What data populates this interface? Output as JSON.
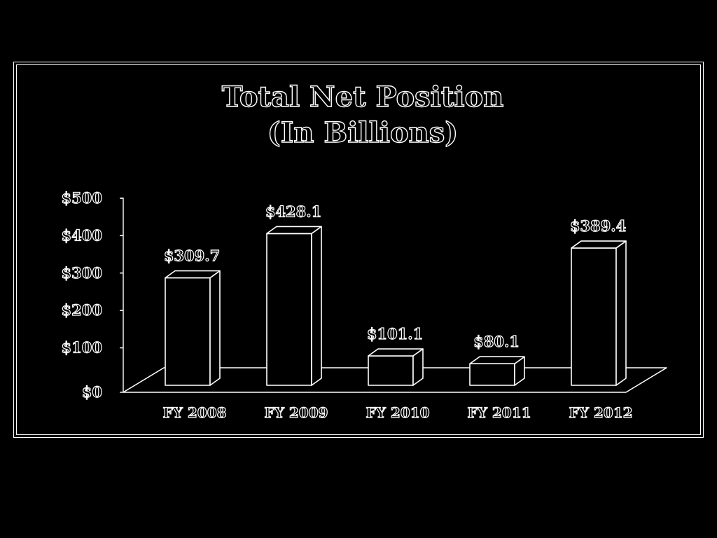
{
  "colors": {
    "background": "#000000",
    "stroke": "#ffffff"
  },
  "chart_data": {
    "type": "bar",
    "title": "Total Net Position",
    "subtitle": "(In Billions)",
    "categories": [
      "FY 2008",
      "FY 2009",
      "FY 2010",
      "FY 2011",
      "FY 2012"
    ],
    "values": [
      309.7,
      428.1,
      101.1,
      80.1,
      389.4
    ],
    "data_labels": [
      "$309.7",
      "$428.1",
      "$101.1",
      "$80.1",
      "$389.4"
    ],
    "ylim": [
      0,
      500
    ],
    "yticks": [
      0,
      100,
      200,
      300,
      400,
      500
    ],
    "ytick_labels": [
      "$0",
      "$100",
      "$200",
      "$300",
      "$400",
      "$500"
    ],
    "style": "3d-outline",
    "grid": false,
    "legend": "none"
  }
}
